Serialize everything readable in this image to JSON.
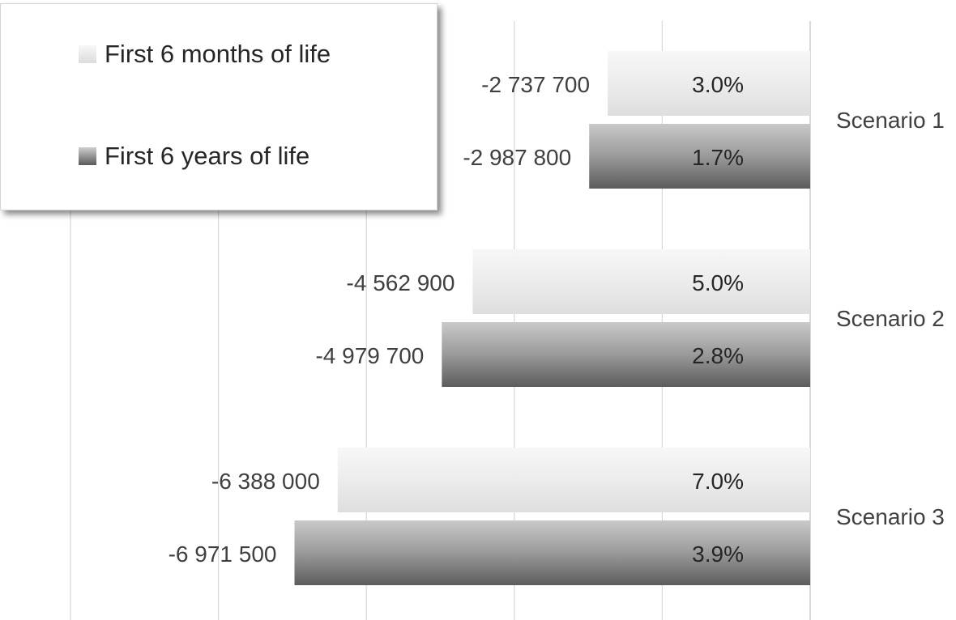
{
  "chart_data": {
    "type": "bar",
    "orientation": "horizontal",
    "categories": [
      "Scenario 1",
      "Scenario 2",
      "Scenario 3"
    ],
    "series": [
      {
        "name": "First 6 months of life",
        "values": [
          -2737700,
          -4562900,
          -6388000
        ],
        "value_labels": [
          "-2 737 700",
          "-4 562 900",
          "-6 388 000"
        ],
        "percent_labels": [
          "3.0%",
          "5.0%",
          "7.0%"
        ],
        "color": "#ebebeb"
      },
      {
        "name": "First 6 years of life",
        "values": [
          -2987800,
          -4979700,
          -6971500
        ],
        "value_labels": [
          "-2 987 800",
          "-4 979 700",
          "-6 971 500"
        ],
        "percent_labels": [
          "1.7%",
          "2.8%",
          "3.9%"
        ],
        "color": "#7a7a7a"
      }
    ],
    "xlim": [
      -10000000,
      0
    ],
    "grid": true,
    "legend": "top-left",
    "category_axis": "right"
  }
}
